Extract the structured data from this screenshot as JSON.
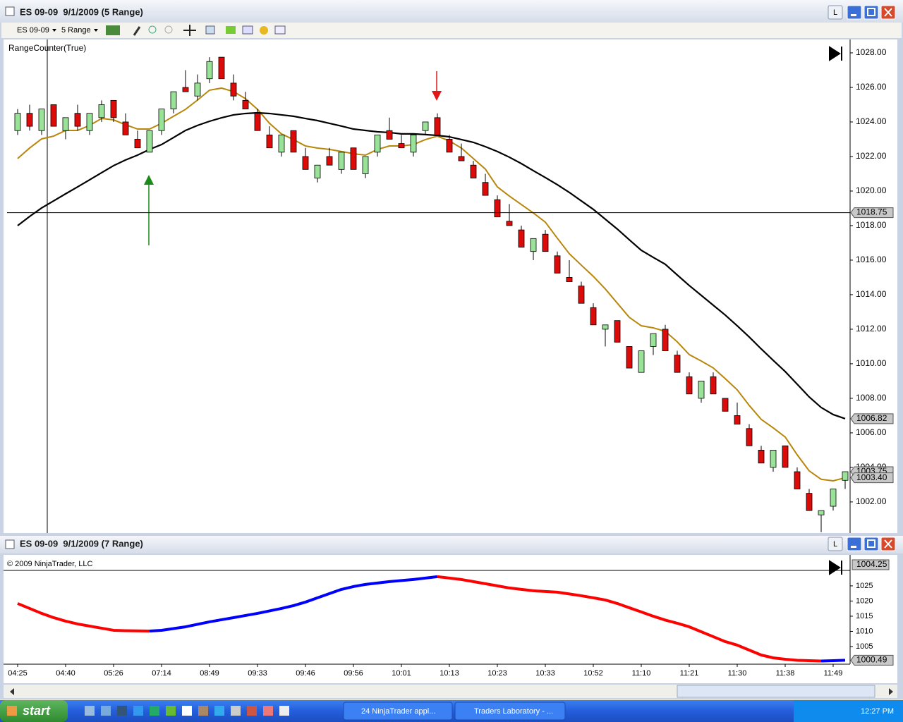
{
  "windows": [
    {
      "title": "ES 09-09  9/1/2009 (5 Range)",
      "button": "L"
    },
    {
      "title": "ES 09-09  9/1/2009 (7 Range)",
      "button": "L"
    }
  ],
  "toolbar": {
    "instrument": "ES 09-09",
    "period": "5 Range"
  },
  "taskbar": {
    "start": "start",
    "tasks": [
      "24 NinjaTrader appl...",
      "Traders Laboratory - ..."
    ],
    "clock": "12:27 PM"
  },
  "chart_data": [
    {
      "type": "candlestick",
      "label": "RangeCounter(True)",
      "open": [
        1023.5,
        1024.5,
        1023.5,
        1025,
        1023.5,
        1024.5,
        1023.5,
        1024.25,
        1025.25,
        1024,
        1023,
        1022.25,
        1023.5,
        1024.75,
        1026,
        1025.5,
        1026.5,
        1027.75,
        1026.25,
        1025.25,
        1024.5,
        1023.25,
        1022.25,
        1023.5,
        1022,
        1020.75,
        1022,
        1021.25,
        1022.5,
        1021,
        1022.25,
        1023.5,
        1022.75,
        1022.25,
        1023.5,
        1024.25,
        1023,
        1022,
        1021.5,
        1020.5,
        1019.5,
        1018.25,
        1017.75,
        1016.5,
        1017.5,
        1016.25,
        1015,
        1014.5,
        1013.25,
        1012,
        1012.5,
        1011,
        1009.5,
        1011,
        1012,
        1010.5,
        1009.25,
        1008,
        1009.25,
        1008,
        1007,
        1006.25,
        1005,
        1004,
        1005.25,
        1003.75,
        1002.5,
        1001.25,
        1001.75,
        1003.25
      ],
      "high": [
        1024.75,
        1025,
        1024.75,
        1025,
        1024.25,
        1025,
        1024.5,
        1025.25,
        1025.25,
        1024.5,
        1023.5,
        1023.5,
        1024.75,
        1025.75,
        1027,
        1026.75,
        1027.75,
        1027.75,
        1026.75,
        1025.75,
        1024.75,
        1023.75,
        1023.25,
        1023.5,
        1022.5,
        1021.5,
        1022.5,
        1022.25,
        1022.5,
        1022,
        1023.25,
        1024.25,
        1023.25,
        1023.25,
        1024,
        1024.5,
        1023.25,
        1022.75,
        1021.75,
        1021,
        1019.75,
        1019.25,
        1018,
        1017.25,
        1017.75,
        1016.5,
        1016,
        1014.75,
        1013.5,
        1012.25,
        1012.5,
        1011,
        1010.75,
        1011.75,
        1012.25,
        1010.75,
        1009.5,
        1009,
        1009.5,
        1008,
        1007.75,
        1006.5,
        1005.25,
        1005,
        1005.25,
        1004,
        1002.75,
        1001.5,
        1002.75,
        1003.75
      ],
      "low": [
        1023.25,
        1023.5,
        1023.25,
        1023.75,
        1023,
        1023.5,
        1023.25,
        1024,
        1024,
        1023.25,
        1022.5,
        1022.25,
        1023.25,
        1024.5,
        1025.75,
        1025.25,
        1026.25,
        1026.5,
        1025.25,
        1024.75,
        1023.5,
        1022.5,
        1022,
        1022.25,
        1021.25,
        1020.5,
        1021.5,
        1021,
        1021.25,
        1020.75,
        1022,
        1023,
        1022.5,
        1022,
        1023.25,
        1023.25,
        1022.25,
        1021.75,
        1020.75,
        1019.75,
        1018.5,
        1018,
        1016.75,
        1016,
        1016.5,
        1015.25,
        1014.75,
        1013.5,
        1012.25,
        1011,
        1011.25,
        1009.75,
        1009.5,
        1010.5,
        1010.75,
        1009.5,
        1008.25,
        1007.75,
        1008.25,
        1007.25,
        1006.5,
        1005.25,
        1004.25,
        1003.75,
        1004,
        1002.75,
        1001.5,
        1000.25,
        1001.5,
        1002.75
      ],
      "close": [
        1024.5,
        1023.75,
        1024.75,
        1023.75,
        1024.25,
        1023.75,
        1024.5,
        1025,
        1024.25,
        1023.25,
        1022.5,
        1023.5,
        1024.75,
        1025.75,
        1025.75,
        1026.25,
        1027.5,
        1026.5,
        1025.5,
        1024.75,
        1023.5,
        1022.5,
        1023.25,
        1022.25,
        1021.25,
        1021.5,
        1021.5,
        1022.25,
        1021.25,
        1022,
        1023.25,
        1023,
        1022.5,
        1023.25,
        1024,
        1023.25,
        1022.25,
        1021.75,
        1020.75,
        1019.75,
        1018.5,
        1018,
        1016.75,
        1017.25,
        1016.5,
        1015.25,
        1014.75,
        1013.5,
        1012.25,
        1012.25,
        1011.25,
        1009.75,
        1010.75,
        1011.75,
        1010.75,
        1009.5,
        1008.25,
        1009,
        1008.25,
        1007.25,
        1006.5,
        1005.25,
        1004.25,
        1005,
        1004,
        1002.75,
        1001.5,
        1001.5,
        1002.75,
        1003.75
      ],
      "up_color": "#99e399",
      "down_color": "#dd0a0a",
      "series": [
        {
          "color": "#b8860b",
          "values": [
            1021.88,
            1022.49,
            1023.02,
            1023.18,
            1023.51,
            1023.51,
            1023.8,
            1024.2,
            1024.12,
            1023.84,
            1023.59,
            1023.59,
            1023.92,
            1024.33,
            1024.73,
            1025.27,
            1025.84,
            1025.96,
            1025.76,
            1025.35,
            1024.73,
            1023.92,
            1023.31,
            1022.98,
            1022.61,
            1022.49,
            1022.41,
            1022.29,
            1022.16,
            1022.08,
            1022.41,
            1022.61,
            1022.61,
            1022.69,
            1022.98,
            1023.18,
            1022.9,
            1022.49,
            1021.88,
            1021.27,
            1020.24,
            1019.71,
            1019.22,
            1018.73,
            1018.2,
            1017.27,
            1016.37,
            1015.71,
            1015.06,
            1014.33,
            1013.51,
            1012.69,
            1012.2,
            1012.08,
            1011.88,
            1011.27,
            1010.53,
            1010.16,
            1009.76,
            1009.14,
            1008.49,
            1007.59,
            1006.78,
            1006.29,
            1005.76,
            1004.73,
            1003.8,
            1003.31,
            1003.22,
            1003.4
          ]
        },
        {
          "color": "#000000",
          "values": [
            1018,
            1018.53,
            1019.02,
            1019.43,
            1019.84,
            1020.24,
            1020.65,
            1021.06,
            1021.47,
            1021.8,
            1022.08,
            1022.41,
            1022.69,
            1023.1,
            1023.51,
            1023.8,
            1024.04,
            1024.24,
            1024.41,
            1024.49,
            1024.53,
            1024.49,
            1024.41,
            1024.33,
            1024.2,
            1024.08,
            1023.92,
            1023.76,
            1023.59,
            1023.51,
            1023.43,
            1023.39,
            1023.31,
            1023.31,
            1023.27,
            1023.22,
            1023.14,
            1022.98,
            1022.82,
            1022.57,
            1022.29,
            1021.96,
            1021.59,
            1021.18,
            1020.78,
            1020.37,
            1019.92,
            1019.43,
            1018.94,
            1018.37,
            1017.8,
            1017.18,
            1016.57,
            1016.16,
            1015.76,
            1015.14,
            1014.53,
            1013.96,
            1013.39,
            1012.82,
            1012.2,
            1011.55,
            1010.86,
            1010.2,
            1009.55,
            1008.82,
            1008.08,
            1007.47,
            1007.06,
            1006.82
          ]
        }
      ],
      "ylim": [
        1000.24,
        1028.53
      ],
      "yticks": [
        {
          "value": 1002,
          "label": "1002.00"
        },
        {
          "value": 1004,
          "label": "1004.00"
        },
        {
          "value": 1006,
          "label": "1006.00"
        },
        {
          "value": 1008,
          "label": "1008.00"
        },
        {
          "value": 1010,
          "label": "1010.00"
        },
        {
          "value": 1012,
          "label": "1012.00"
        },
        {
          "value": 1014,
          "label": "1014.00"
        },
        {
          "value": 1016,
          "label": "1016.00"
        },
        {
          "value": 1018,
          "label": "1018.00"
        },
        {
          "value": 1020,
          "label": "1020.00"
        },
        {
          "value": 1022,
          "label": "1022.00"
        },
        {
          "value": 1024,
          "label": "1024.00"
        },
        {
          "value": 1026,
          "label": "1026.00"
        },
        {
          "value": 1028,
          "label": "1028.00"
        }
      ],
      "markers": [
        1018.75,
        1006.82,
        1003.75,
        {
          "value": 1003.4,
          "label": "1003.40"
        }
      ]
    },
    {
      "type": "line",
      "label": "© 2009 NinjaTrader, LLC",
      "categories": [
        "04:25",
        null,
        null,
        null,
        "04:40",
        null,
        null,
        null,
        "05:26",
        null,
        null,
        null,
        "07:14",
        null,
        null,
        null,
        "08:49",
        null,
        null,
        null,
        "09:33",
        null,
        null,
        null,
        "09:46",
        null,
        null,
        null,
        "09:56",
        null,
        null,
        null,
        "10:01",
        null,
        null,
        null,
        "10:13",
        null,
        null,
        null,
        "10:23",
        null,
        null,
        null,
        "10:33",
        null,
        null,
        null,
        "10:52",
        null,
        null,
        null,
        "11:10",
        null,
        null,
        null,
        "11:21",
        null,
        null,
        null,
        "11:30",
        null,
        null,
        null,
        "11:38",
        null,
        null,
        null,
        "11:49",
        null
      ],
      "values": [
        1019.19,
        1017.56,
        1015.93,
        1014.53,
        1013.37,
        1012.44,
        1011.74,
        1011.05,
        1010.35,
        1010.23,
        1010.16,
        1010.1,
        1010.35,
        1010.93,
        1011.51,
        1012.33,
        1013.14,
        1013.84,
        1014.53,
        1015.23,
        1015.93,
        1016.74,
        1017.56,
        1018.49,
        1019.65,
        1021.05,
        1022.44,
        1023.84,
        1024.77,
        1025.47,
        1025.93,
        1026.4,
        1026.74,
        1027.09,
        1027.56,
        1028.02,
        1027.56,
        1027.09,
        1026.4,
        1025.7,
        1025,
        1024.3,
        1023.84,
        1023.37,
        1023.14,
        1022.91,
        1022.33,
        1021.74,
        1021.05,
        1020.35,
        1019.19,
        1017.79,
        1016.4,
        1015,
        1013.72,
        1012.67,
        1011.51,
        1009.88,
        1008.26,
        1006.63,
        1005.47,
        1003.84,
        1002.21,
        1001.28,
        1000.81,
        1000.47,
        1000.35,
        1000.23,
        1000.35,
        1000.49
      ],
      "up_color": "#0000ff",
      "down_color": "#ff0000",
      "ylim": [
        999.19,
        1035.2
      ],
      "yticks": [
        1005,
        1010,
        1015,
        1020,
        1025
      ],
      "crosshair_label": 1004.25,
      "markers": [
        1000.49
      ]
    }
  ]
}
